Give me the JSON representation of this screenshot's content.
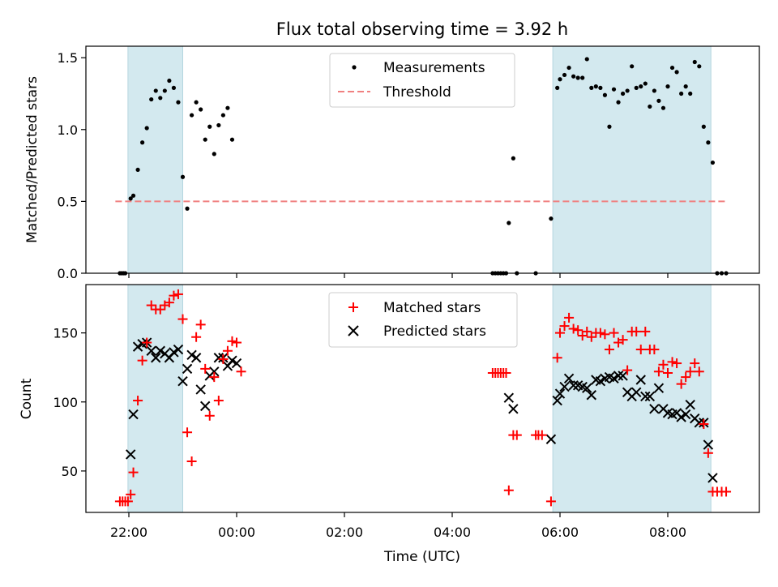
{
  "chart_data": {
    "type": "scatter",
    "title": "Flux total observing time = 3.92 h",
    "xlabel": "Time (UTC)",
    "x_unit": "hours relative to 00:00 UTC",
    "x_ticks": [
      {
        "label": "22:00"
      },
      {
        "label": "00:00"
      },
      {
        "label": "02:00"
      },
      {
        "label": "04:00"
      },
      {
        "label": "06:00"
      },
      {
        "label": "08:00"
      }
    ],
    "shaded_intervals": [
      [
        "21:59",
        "23:00"
      ],
      [
        "05:52",
        "08:48"
      ]
    ],
    "colors": {
      "shade": "#d3e9ef",
      "matched": "#ff0000",
      "predicted": "#000000",
      "threshold": "#f08080"
    },
    "top": {
      "ylabel": "Matched/Predicted stars",
      "ylim": [
        0,
        1.58
      ],
      "y_ticks": [
        "0.0",
        "0.5",
        "1.0",
        "1.5"
      ],
      "legend": {
        "placement": "upper center",
        "measurements": "Measurements",
        "threshold": "Threshold"
      },
      "threshold": {
        "value": 0.5,
        "x_range": [
          "21:45",
          "09:05"
        ]
      },
      "measurements": [
        [
          "21:50",
          0
        ],
        [
          "21:52",
          0
        ],
        [
          "21:54",
          0
        ],
        [
          "21:56",
          0
        ],
        [
          "22:02",
          0.52
        ],
        [
          "22:05",
          0.54
        ],
        [
          "22:10",
          0.72
        ],
        [
          "22:15",
          0.91
        ],
        [
          "22:20",
          1.01
        ],
        [
          "22:25",
          1.21
        ],
        [
          "22:30",
          1.27
        ],
        [
          "22:35",
          1.22
        ],
        [
          "22:40",
          1.27
        ],
        [
          "22:45",
          1.34
        ],
        [
          "22:50",
          1.29
        ],
        [
          "22:55",
          1.19
        ],
        [
          "23:00",
          0.67
        ],
        [
          "23:05",
          0.45
        ],
        [
          "23:10",
          1.1
        ],
        [
          "23:15",
          1.19
        ],
        [
          "23:20",
          1.14
        ],
        [
          "23:25",
          0.93
        ],
        [
          "23:30",
          1.02
        ],
        [
          "23:35",
          0.83
        ],
        [
          "23:40",
          1.03
        ],
        [
          "23:45",
          1.1
        ],
        [
          "23:50",
          1.15
        ],
        [
          "23:55",
          0.93
        ],
        [
          "04:45",
          0
        ],
        [
          "04:48",
          0
        ],
        [
          "04:51",
          0
        ],
        [
          "04:54",
          0
        ],
        [
          "04:57",
          0
        ],
        [
          "05:00",
          0
        ],
        [
          "05:03",
          0.35
        ],
        [
          "05:08",
          0.8
        ],
        [
          "05:12",
          0
        ],
        [
          "05:33",
          0
        ],
        [
          "05:50",
          0.38
        ],
        [
          "05:57",
          1.29
        ],
        [
          "06:00",
          1.35
        ],
        [
          "06:05",
          1.38
        ],
        [
          "06:10",
          1.43
        ],
        [
          "06:15",
          1.37
        ],
        [
          "06:20",
          1.36
        ],
        [
          "06:25",
          1.36
        ],
        [
          "06:30",
          1.49
        ],
        [
          "06:35",
          1.29
        ],
        [
          "06:40",
          1.3
        ],
        [
          "06:45",
          1.29
        ],
        [
          "06:50",
          1.24
        ],
        [
          "06:55",
          1.02
        ],
        [
          "07:00",
          1.28
        ],
        [
          "07:05",
          1.19
        ],
        [
          "07:10",
          1.25
        ],
        [
          "07:15",
          1.27
        ],
        [
          "07:20",
          1.44
        ],
        [
          "07:25",
          1.29
        ],
        [
          "07:30",
          1.3
        ],
        [
          "07:35",
          1.32
        ],
        [
          "07:40",
          1.16
        ],
        [
          "07:45",
          1.27
        ],
        [
          "07:50",
          1.2
        ],
        [
          "07:55",
          1.15
        ],
        [
          "08:00",
          1.3
        ],
        [
          "08:05",
          1.43
        ],
        [
          "08:10",
          1.4
        ],
        [
          "08:15",
          1.25
        ],
        [
          "08:20",
          1.3
        ],
        [
          "08:25",
          1.25
        ],
        [
          "08:30",
          1.47
        ],
        [
          "08:35",
          1.44
        ],
        [
          "08:40",
          1.02
        ],
        [
          "08:45",
          0.91
        ],
        [
          "08:50",
          0.77
        ],
        [
          "08:55",
          0
        ],
        [
          "09:00",
          0
        ],
        [
          "09:05",
          0
        ]
      ]
    },
    "bottom": {
      "ylabel": "Count",
      "ylim": [
        20,
        185
      ],
      "y_ticks": [
        "50",
        "100",
        "150"
      ],
      "legend": {
        "placement": "upper center",
        "matched": "Matched stars",
        "predicted": "Predicted stars"
      },
      "matched": [
        [
          "21:50",
          28
        ],
        [
          "21:53",
          28
        ],
        [
          "21:56",
          28
        ],
        [
          "21:59",
          28
        ],
        [
          "22:02",
          33
        ],
        [
          "22:05",
          49
        ],
        [
          "22:10",
          101
        ],
        [
          "22:15",
          130
        ],
        [
          "22:20",
          143
        ],
        [
          "22:25",
          170
        ],
        [
          "22:30",
          167
        ],
        [
          "22:35",
          167
        ],
        [
          "22:40",
          170
        ],
        [
          "22:45",
          172
        ],
        [
          "22:50",
          177
        ],
        [
          "22:55",
          178
        ],
        [
          "23:00",
          160
        ],
        [
          "23:05",
          78
        ],
        [
          "23:10",
          57
        ],
        [
          "23:15",
          147
        ],
        [
          "23:20",
          156
        ],
        [
          "23:25",
          124
        ],
        [
          "23:30",
          90
        ],
        [
          "23:35",
          118
        ],
        [
          "23:40",
          101
        ],
        [
          "23:45",
          131
        ],
        [
          "23:50",
          137
        ],
        [
          "23:55",
          144
        ],
        [
          "00:00",
          143
        ],
        [
          "00:05",
          122
        ],
        [
          "04:45",
          121
        ],
        [
          "04:48",
          121
        ],
        [
          "04:51",
          121
        ],
        [
          "04:54",
          121
        ],
        [
          "04:57",
          121
        ],
        [
          "05:00",
          121
        ],
        [
          "05:03",
          36
        ],
        [
          "05:08",
          76
        ],
        [
          "05:12",
          76
        ],
        [
          "05:33",
          76
        ],
        [
          "05:36",
          76
        ],
        [
          "05:40",
          76
        ],
        [
          "05:50",
          28
        ],
        [
          "05:57",
          132
        ],
        [
          "06:00",
          150
        ],
        [
          "06:05",
          155
        ],
        [
          "06:10",
          161
        ],
        [
          "06:15",
          153
        ],
        [
          "06:20",
          152
        ],
        [
          "06:25",
          148
        ],
        [
          "06:30",
          151
        ],
        [
          "06:35",
          147
        ],
        [
          "06:40",
          150
        ],
        [
          "06:45",
          150
        ],
        [
          "06:50",
          149
        ],
        [
          "06:55",
          138
        ],
        [
          "07:00",
          150
        ],
        [
          "07:05",
          143
        ],
        [
          "07:10",
          145
        ],
        [
          "07:15",
          123
        ],
        [
          "07:20",
          151
        ],
        [
          "07:25",
          151
        ],
        [
          "07:30",
          138
        ],
        [
          "07:35",
          151
        ],
        [
          "07:40",
          138
        ],
        [
          "07:45",
          138
        ],
        [
          "07:50",
          122
        ],
        [
          "07:55",
          127
        ],
        [
          "08:00",
          121
        ],
        [
          "08:05",
          129
        ],
        [
          "08:10",
          128
        ],
        [
          "08:15",
          113
        ],
        [
          "08:20",
          118
        ],
        [
          "08:25",
          122
        ],
        [
          "08:30",
          128
        ],
        [
          "08:35",
          122
        ],
        [
          "08:40",
          84
        ],
        [
          "08:45",
          63
        ],
        [
          "08:50",
          35
        ],
        [
          "08:55",
          35
        ],
        [
          "09:00",
          35
        ],
        [
          "09:05",
          35
        ]
      ],
      "predicted": [
        [
          "22:02",
          62
        ],
        [
          "22:05",
          91
        ],
        [
          "22:10",
          140
        ],
        [
          "22:15",
          142
        ],
        [
          "22:20",
          143
        ],
        [
          "22:25",
          137
        ],
        [
          "22:30",
          132
        ],
        [
          "22:35",
          137
        ],
        [
          "22:40",
          135
        ],
        [
          "22:45",
          132
        ],
        [
          "22:50",
          136
        ],
        [
          "22:55",
          138
        ],
        [
          "23:00",
          115
        ],
        [
          "23:05",
          124
        ],
        [
          "23:10",
          134
        ],
        [
          "23:15",
          132
        ],
        [
          "23:20",
          109
        ],
        [
          "23:25",
          97
        ],
        [
          "23:30",
          119
        ],
        [
          "23:35",
          122
        ],
        [
          "23:40",
          132
        ],
        [
          "23:45",
          132
        ],
        [
          "23:50",
          126
        ],
        [
          "23:55",
          130
        ],
        [
          "00:00",
          128
        ],
        [
          "05:03",
          103
        ],
        [
          "05:08",
          95
        ],
        [
          "05:50",
          73
        ],
        [
          "05:57",
          101
        ],
        [
          "06:00",
          106
        ],
        [
          "06:05",
          111
        ],
        [
          "06:10",
          117
        ],
        [
          "06:15",
          112
        ],
        [
          "06:20",
          112
        ],
        [
          "06:25",
          111
        ],
        [
          "06:30",
          110
        ],
        [
          "06:35",
          105
        ],
        [
          "06:40",
          116
        ],
        [
          "06:45",
          115
        ],
        [
          "06:50",
          117
        ],
        [
          "06:55",
          118
        ],
        [
          "07:00",
          117
        ],
        [
          "07:05",
          119
        ],
        [
          "07:10",
          119
        ],
        [
          "07:15",
          107
        ],
        [
          "07:20",
          104
        ],
        [
          "07:25",
          107
        ],
        [
          "07:30",
          116
        ],
        [
          "07:35",
          104
        ],
        [
          "07:40",
          104
        ],
        [
          "07:45",
          95
        ],
        [
          "07:50",
          110
        ],
        [
          "07:55",
          95
        ],
        [
          "08:00",
          92
        ],
        [
          "08:05",
          91
        ],
        [
          "08:10",
          92
        ],
        [
          "08:15",
          89
        ],
        [
          "08:20",
          91
        ],
        [
          "08:25",
          98
        ],
        [
          "08:30",
          88
        ],
        [
          "08:35",
          85
        ],
        [
          "08:40",
          85
        ],
        [
          "08:45",
          69
        ],
        [
          "08:50",
          45
        ]
      ]
    }
  }
}
